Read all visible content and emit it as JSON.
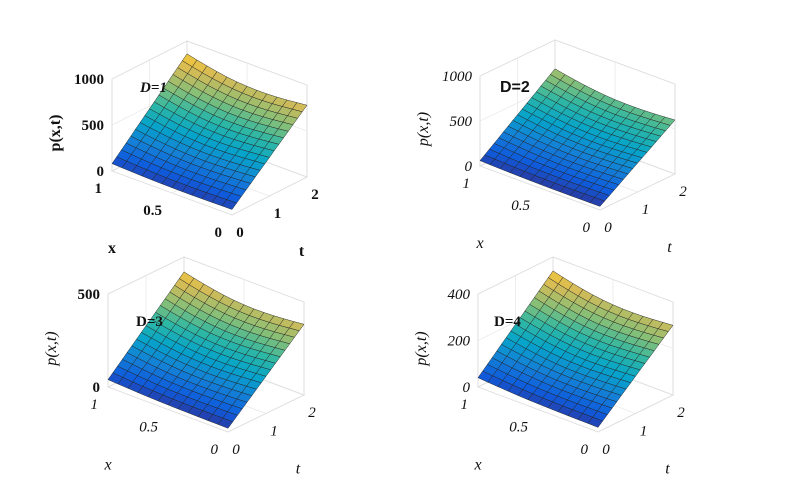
{
  "chart_data": [
    {
      "type": "surface",
      "title": "D=1",
      "xlabel": "t",
      "ylabel": "x",
      "zlabel": "p(x,t)",
      "xlim": [
        0,
        2
      ],
      "ylim": [
        0,
        1
      ],
      "zlim": [
        0,
        1000
      ],
      "xticks": [
        "0",
        "1",
        "2"
      ],
      "yticks": [
        "0",
        "0.5",
        "1"
      ],
      "zticks": [
        "0",
        "500",
        "1000"
      ],
      "D": 1,
      "corner_values": {
        "t0_x0": 60,
        "t0_x1": 80,
        "t2_x0": 780,
        "t2_x1": 860
      },
      "colormap": [
        "#352a87",
        "#0f5cdd",
        "#1481d6",
        "#06a4ca",
        "#2eb7a4",
        "#87bf77",
        "#d1bb59",
        "#fec832",
        "#f9fb0e"
      ]
    },
    {
      "type": "surface",
      "title": "D=2",
      "xlabel": "t",
      "ylabel": "x",
      "zlabel": "p(x,t)",
      "xlim": [
        0,
        2
      ],
      "ylim": [
        0,
        1
      ],
      "zlim": [
        0,
        1000
      ],
      "xticks": [
        "0",
        "1",
        "2"
      ],
      "yticks": [
        "0",
        "0.5",
        "1"
      ],
      "zticks": [
        "0",
        "500",
        "1000"
      ],
      "D": 2,
      "corner_values": {
        "t0_x0": 40,
        "t0_x1": 60,
        "t2_x0": 600,
        "t2_x1": 680
      }
    },
    {
      "type": "surface",
      "title": "D=3",
      "xlabel": "t",
      "ylabel": "x",
      "zlabel": "p(x,t)",
      "xlim": [
        0,
        2
      ],
      "ylim": [
        0,
        1
      ],
      "zlim": [
        0,
        500
      ],
      "xticks": [
        "0",
        "1",
        "2"
      ],
      "yticks": [
        "0",
        "0.5",
        "1"
      ],
      "zticks": [
        "0",
        "500"
      ],
      "D": 3,
      "corner_values": {
        "t0_x0": 20,
        "t0_x1": 40,
        "t2_x0": 380,
        "t2_x1": 420
      }
    },
    {
      "type": "surface",
      "title": "D=4",
      "xlabel": "t",
      "ylabel": "x",
      "zlabel": "p(x,t)",
      "xlim": [
        0,
        2
      ],
      "ylim": [
        0,
        1
      ],
      "zlim": [
        0,
        400
      ],
      "xticks": [
        "0",
        "1",
        "2"
      ],
      "yticks": [
        "0",
        "0.5",
        "1"
      ],
      "zticks": [
        "0",
        "200",
        "400"
      ],
      "D": 4,
      "corner_values": {
        "t0_x0": 20,
        "t0_x1": 40,
        "t2_x0": 300,
        "t2_x1": 340
      }
    }
  ]
}
